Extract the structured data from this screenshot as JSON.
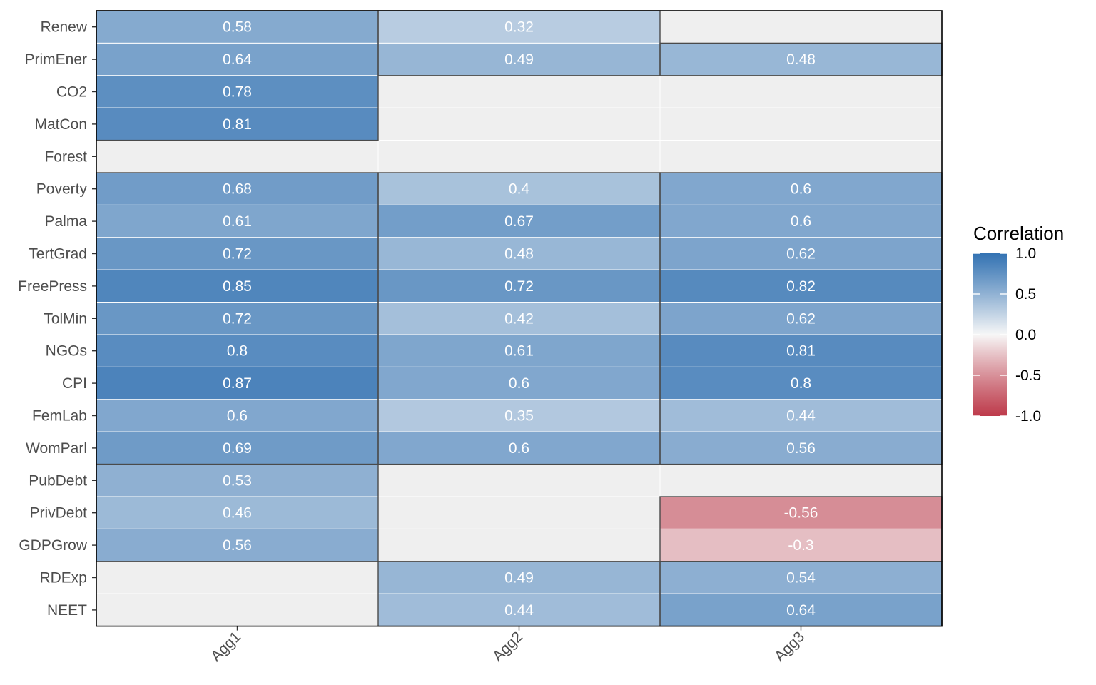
{
  "chart_data": {
    "type": "heatmap",
    "title": "",
    "xlabel": "",
    "ylabel": "",
    "x_categories": [
      "Agg1",
      "Agg2",
      "Agg3"
    ],
    "y_categories": [
      "Renew",
      "PrimEner",
      "CO2",
      "MatCon",
      "Forest",
      "Poverty",
      "Palma",
      "TertGrad",
      "FreePress",
      "TolMin",
      "NGOs",
      "CPI",
      "FemLab",
      "WomParl",
      "PubDebt",
      "PrivDebt",
      "GDPGrow",
      "RDExp",
      "NEET"
    ],
    "values": [
      [
        0.58,
        0.32,
        null
      ],
      [
        0.64,
        0.49,
        0.48
      ],
      [
        0.78,
        null,
        null
      ],
      [
        0.81,
        null,
        null
      ],
      [
        null,
        null,
        null
      ],
      [
        0.68,
        0.4,
        0.6
      ],
      [
        0.61,
        0.67,
        0.6
      ],
      [
        0.72,
        0.48,
        0.62
      ],
      [
        0.85,
        0.72,
        0.82
      ],
      [
        0.72,
        0.42,
        0.62
      ],
      [
        0.8,
        0.61,
        0.81
      ],
      [
        0.87,
        0.6,
        0.8
      ],
      [
        0.6,
        0.35,
        0.44
      ],
      [
        0.69,
        0.6,
        0.56
      ],
      [
        0.53,
        null,
        null
      ],
      [
        0.46,
        null,
        -0.56
      ],
      [
        0.56,
        null,
        -0.3
      ],
      [
        null,
        0.49,
        0.54
      ],
      [
        null,
        0.44,
        0.64
      ]
    ],
    "missing_color": "#efefef",
    "color_scale": {
      "low": "#b2182b",
      "mid": "#f7f7f7",
      "high": "#2166ac",
      "limits": [
        -1,
        1
      ]
    },
    "legend": {
      "title": "Correlation",
      "ticks": [
        "1.0",
        "0.5",
        "0.0",
        "-0.5",
        "-1.0"
      ],
      "tick_values": [
        1,
        0.5,
        0,
        -0.5,
        -1
      ],
      "position": "right"
    },
    "group_boxes": [
      {
        "col": "Agg1",
        "rows": [
          "Renew",
          "MatCon"
        ]
      },
      {
        "col": "Agg1",
        "rows": [
          "Poverty",
          "WomParl"
        ]
      },
      {
        "col": "Agg1",
        "rows": [
          "PubDebt",
          "GDPGrow"
        ]
      },
      {
        "col": "Agg2",
        "rows": [
          "Renew",
          "PrimEner"
        ]
      },
      {
        "col": "Agg2",
        "rows": [
          "Poverty",
          "WomParl"
        ]
      },
      {
        "col": "Agg2",
        "rows": [
          "RDExp",
          "NEET"
        ]
      },
      {
        "col": "Agg3",
        "rows": [
          "PrimEner",
          "PrimEner"
        ]
      },
      {
        "col": "Agg3",
        "rows": [
          "Poverty",
          "WomParl"
        ]
      },
      {
        "col": "Agg3",
        "rows": [
          "PrivDebt",
          "GDPGrow"
        ]
      },
      {
        "col": "Agg3",
        "rows": [
          "RDExp",
          "NEET"
        ]
      }
    ]
  }
}
